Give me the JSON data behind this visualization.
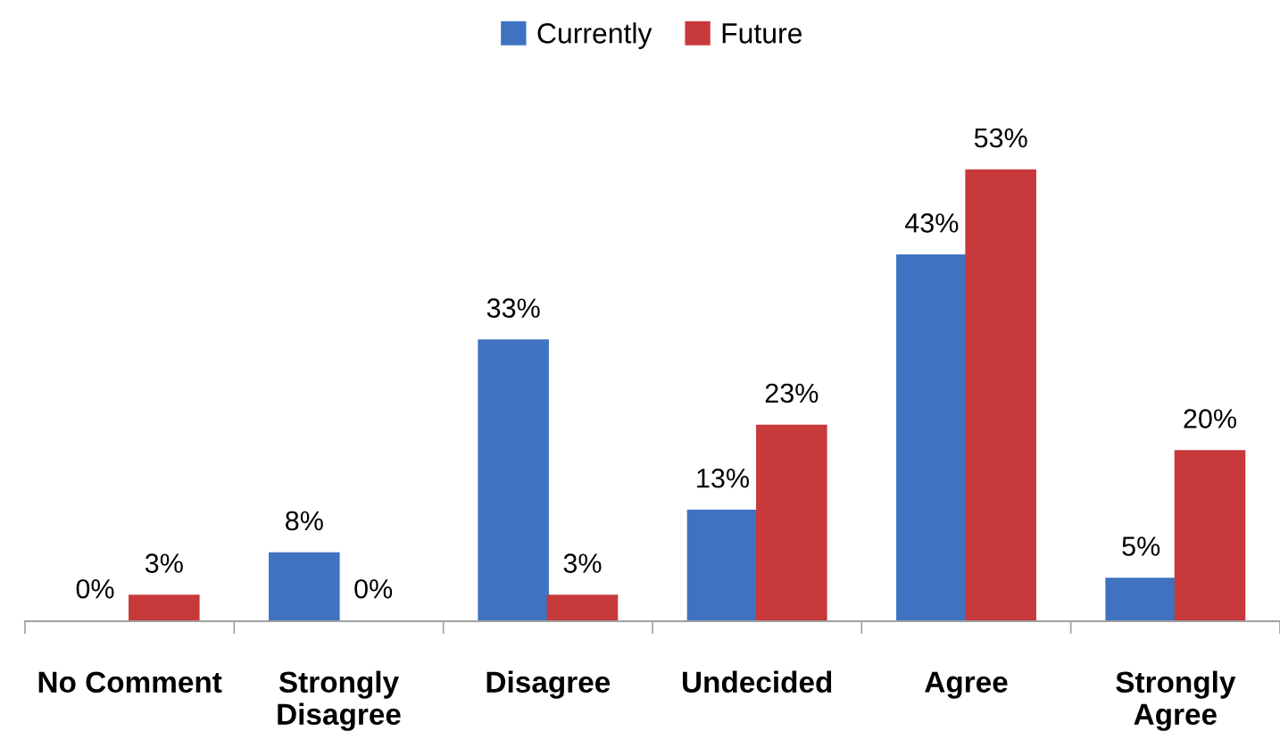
{
  "chart_data": {
    "type": "bar",
    "categories": [
      "No Comment",
      "Strongly\nDisagree",
      "Disagree",
      "Undecided",
      "Agree",
      "Strongly\nAgree"
    ],
    "series": [
      {
        "name": "Currently",
        "color": "#3f73c2",
        "values": [
          0,
          8,
          33,
          13,
          43,
          5
        ],
        "value_labels": [
          "0%",
          "8%",
          "33%",
          "13%",
          "43%",
          "5%"
        ]
      },
      {
        "name": "Future",
        "color": "#c8393b",
        "values": [
          3,
          0,
          3,
          23,
          53,
          20
        ],
        "value_labels": [
          "3%",
          "0%",
          "3%",
          "23%",
          "53%",
          "20%"
        ]
      }
    ],
    "legend": "top",
    "grid": false
  }
}
